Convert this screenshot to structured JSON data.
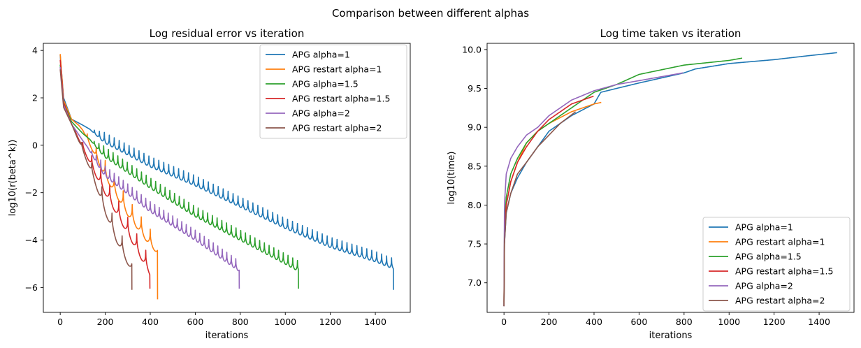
{
  "figure": {
    "suptitle": "Comparison between different alphas"
  },
  "colors": {
    "apg_1": "#1f77b4",
    "apg_restart_1": "#ff7f0e",
    "apg_1_5": "#2ca02c",
    "apg_restart_1_5": "#d62728",
    "apg_2": "#9467bd",
    "apg_restart_2": "#8c564b"
  },
  "chart_data": [
    {
      "type": "line",
      "title": "Log residual error vs iteration",
      "xlabel": "iterations",
      "ylabel": "log10(r(beta^k))",
      "xlim": [
        -75,
        1555
      ],
      "ylim": [
        -7.05,
        4.3
      ],
      "xticks": [
        0,
        200,
        400,
        600,
        800,
        1000,
        1200,
        1400
      ],
      "yticks": [
        -6,
        -4,
        -2,
        0,
        2,
        4
      ],
      "grid": false,
      "legend": "top-right",
      "series": [
        {
          "name": "APG alpha=1",
          "color": "#1f77b4",
          "end_x": 1480,
          "start_y": 3.8,
          "end_y": -5.0,
          "final_y": -6.1,
          "oscillation": {
            "start_x": 130,
            "period": 22,
            "depth": 0.55
          },
          "anchors": [
            [
              0,
              3.8
            ],
            [
              15,
              2.0
            ],
            [
              50,
              1.1
            ],
            [
              100,
              0.85
            ],
            [
              200,
              0.3
            ],
            [
              400,
              -0.7
            ],
            [
              600,
              -1.5
            ],
            [
              800,
              -2.4
            ],
            [
              1000,
              -3.3
            ],
            [
              1200,
              -4.1
            ],
            [
              1400,
              -4.7
            ],
            [
              1480,
              -5.0
            ]
          ]
        },
        {
          "name": "APG restart alpha=1",
          "color": "#ff7f0e",
          "end_x": 432,
          "start_y": 3.85,
          "end_y": -4.2,
          "final_y": -6.5,
          "oscillation": {
            "start_x": 80,
            "period": 40,
            "depth": 0.9
          },
          "anchors": [
            [
              0,
              3.85
            ],
            [
              15,
              1.9
            ],
            [
              50,
              1.1
            ],
            [
              100,
              0.7
            ],
            [
              200,
              -1.0
            ],
            [
              300,
              -2.6
            ],
            [
              400,
              -3.9
            ],
            [
              432,
              -4.2
            ]
          ]
        },
        {
          "name": "APG alpha=1.5",
          "color": "#2ca02c",
          "end_x": 1058,
          "start_y": 3.4,
          "end_y": -5.1,
          "final_y": -6.05,
          "oscillation": {
            "start_x": 130,
            "period": 21,
            "depth": 0.55
          },
          "anchors": [
            [
              0,
              3.4
            ],
            [
              15,
              1.8
            ],
            [
              50,
              1.0
            ],
            [
              100,
              0.5
            ],
            [
              200,
              -0.3
            ],
            [
              400,
              -1.6
            ],
            [
              600,
              -2.8
            ],
            [
              800,
              -3.8
            ],
            [
              1000,
              -4.8
            ],
            [
              1058,
              -5.1
            ]
          ]
        },
        {
          "name": "APG restart alpha=1.5",
          "color": "#d62728",
          "end_x": 398,
          "start_y": 3.6,
          "end_y": -5.1,
          "final_y": -6.05,
          "oscillation": {
            "start_x": 60,
            "period": 40,
            "depth": 0.9
          },
          "anchors": [
            [
              0,
              3.6
            ],
            [
              15,
              1.8
            ],
            [
              50,
              0.9
            ],
            [
              100,
              0.0
            ],
            [
              200,
              -1.7
            ],
            [
              300,
              -3.4
            ],
            [
              398,
              -5.1
            ]
          ]
        },
        {
          "name": "APG alpha=2",
          "color": "#9467bd",
          "end_x": 795,
          "start_y": 3.3,
          "end_y": -5.1,
          "final_y": -6.05,
          "oscillation": {
            "start_x": 120,
            "period": 20,
            "depth": 0.55
          },
          "anchors": [
            [
              0,
              3.3
            ],
            [
              15,
              1.7
            ],
            [
              50,
              0.9
            ],
            [
              100,
              0.2
            ],
            [
              200,
              -1.1
            ],
            [
              400,
              -2.6
            ],
            [
              600,
              -3.8
            ],
            [
              795,
              -5.1
            ]
          ]
        },
        {
          "name": "APG restart alpha=2",
          "color": "#8c564b",
          "end_x": 318,
          "start_y": 3.2,
          "end_y": -5.0,
          "final_y": -6.1,
          "oscillation": {
            "start_x": 50,
            "period": 45,
            "depth": 0.9
          },
          "anchors": [
            [
              0,
              3.2
            ],
            [
              15,
              1.6
            ],
            [
              50,
              0.9
            ],
            [
              100,
              -0.1
            ],
            [
              150,
              -1.2
            ],
            [
              200,
              -2.5
            ],
            [
              250,
              -3.7
            ],
            [
              318,
              -5.0
            ]
          ]
        }
      ]
    },
    {
      "type": "line",
      "title": "Log time taken vs iteration",
      "xlabel": "iterations",
      "ylabel": "log10(time)",
      "xlim": [
        -75,
        1555
      ],
      "ylim": [
        6.62,
        10.08
      ],
      "xticks": [
        0,
        200,
        400,
        600,
        800,
        1000,
        1200,
        1400
      ],
      "yticks": [
        7.0,
        7.5,
        8.0,
        8.5,
        9.0,
        9.5,
        10.0
      ],
      "grid": false,
      "legend": "bottom-right",
      "series": [
        {
          "name": "APG alpha=1",
          "color": "#1f77b4",
          "anchors": [
            [
              0,
              6.7
            ],
            [
              2,
              7.5
            ],
            [
              10,
              7.9
            ],
            [
              30,
              8.15
            ],
            [
              60,
              8.35
            ],
            [
              100,
              8.55
            ],
            [
              150,
              8.75
            ],
            [
              200,
              8.95
            ],
            [
              300,
              9.15
            ],
            [
              400,
              9.3
            ],
            [
              430,
              9.45
            ],
            [
              500,
              9.5
            ],
            [
              600,
              9.57
            ],
            [
              800,
              9.7
            ],
            [
              850,
              9.75
            ],
            [
              1000,
              9.82
            ],
            [
              1200,
              9.87
            ],
            [
              1350,
              9.92
            ],
            [
              1480,
              9.96
            ]
          ]
        },
        {
          "name": "APG restart alpha=1",
          "color": "#ff7f0e",
          "anchors": [
            [
              0,
              6.75
            ],
            [
              2,
              7.6
            ],
            [
              10,
              8.0
            ],
            [
              30,
              8.3
            ],
            [
              60,
              8.55
            ],
            [
              100,
              8.8
            ],
            [
              150,
              8.95
            ],
            [
              200,
              9.05
            ],
            [
              300,
              9.2
            ],
            [
              400,
              9.3
            ],
            [
              432,
              9.32
            ]
          ]
        },
        {
          "name": "APG alpha=1.5",
          "color": "#2ca02c",
          "anchors": [
            [
              0,
              6.7
            ],
            [
              2,
              7.7
            ],
            [
              10,
              8.1
            ],
            [
              30,
              8.4
            ],
            [
              60,
              8.6
            ],
            [
              100,
              8.8
            ],
            [
              150,
              8.95
            ],
            [
              200,
              9.05
            ],
            [
              300,
              9.25
            ],
            [
              400,
              9.45
            ],
            [
              500,
              9.55
            ],
            [
              600,
              9.68
            ],
            [
              800,
              9.8
            ],
            [
              1000,
              9.86
            ],
            [
              1058,
              9.89
            ]
          ]
        },
        {
          "name": "APG restart alpha=1.5",
          "color": "#d62728",
          "anchors": [
            [
              0,
              6.7
            ],
            [
              2,
              7.6
            ],
            [
              10,
              8.0
            ],
            [
              30,
              8.3
            ],
            [
              60,
              8.55
            ],
            [
              100,
              8.75
            ],
            [
              150,
              8.95
            ],
            [
              200,
              9.1
            ],
            [
              250,
              9.2
            ],
            [
              300,
              9.3
            ],
            [
              398,
              9.4
            ]
          ]
        },
        {
          "name": "APG alpha=2",
          "color": "#9467bd",
          "anchors": [
            [
              0,
              6.7
            ],
            [
              2,
              8.0
            ],
            [
              10,
              8.4
            ],
            [
              30,
              8.6
            ],
            [
              60,
              8.75
            ],
            [
              100,
              8.9
            ],
            [
              150,
              9.0
            ],
            [
              200,
              9.15
            ],
            [
              300,
              9.35
            ],
            [
              400,
              9.47
            ],
            [
              500,
              9.55
            ],
            [
              600,
              9.6
            ],
            [
              795,
              9.7
            ]
          ]
        },
        {
          "name": "APG restart alpha=2",
          "color": "#8c564b",
          "anchors": [
            [
              0,
              6.7
            ],
            [
              2,
              7.5
            ],
            [
              10,
              7.9
            ],
            [
              30,
              8.15
            ],
            [
              60,
              8.4
            ],
            [
              100,
              8.55
            ],
            [
              150,
              8.75
            ],
            [
              200,
              8.9
            ],
            [
              250,
              9.05
            ],
            [
              318,
              9.2
            ]
          ]
        }
      ]
    }
  ]
}
